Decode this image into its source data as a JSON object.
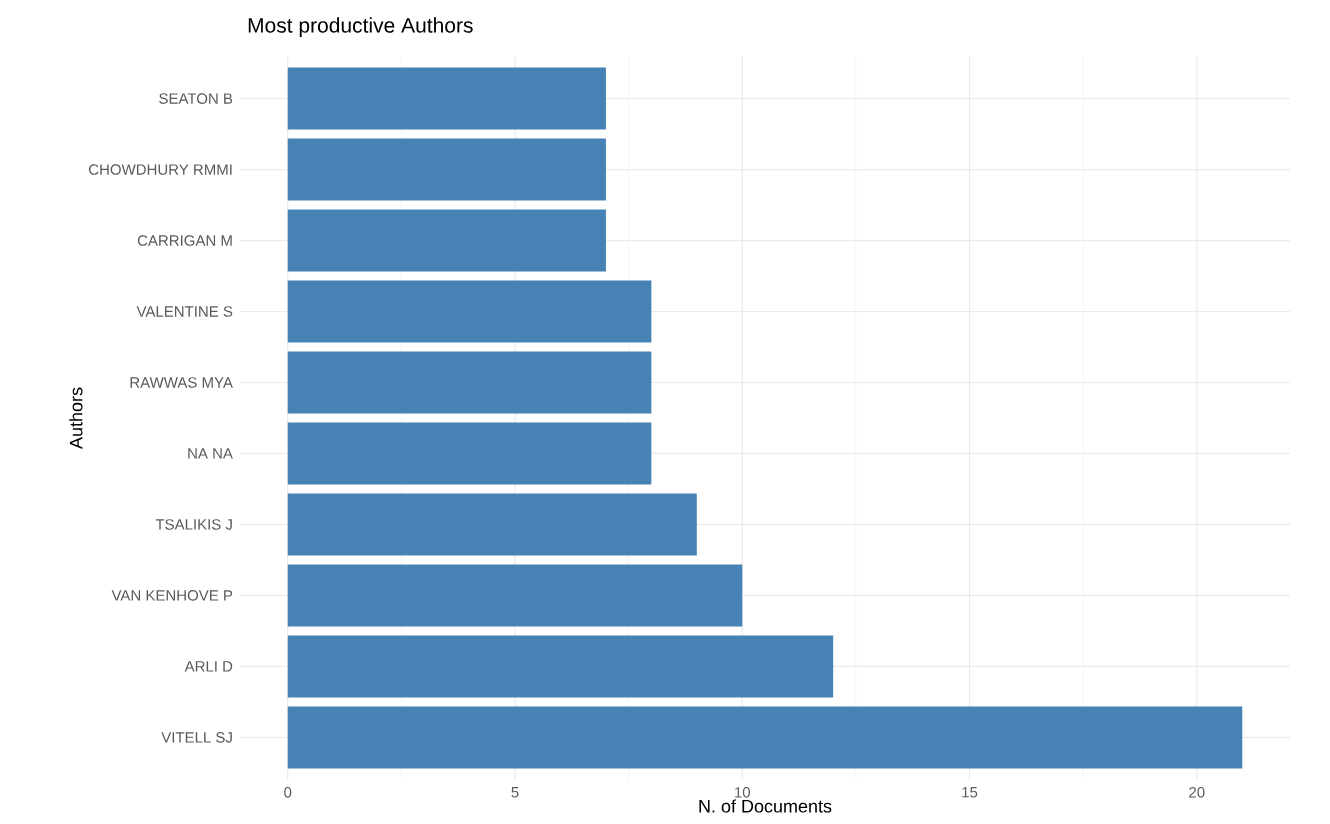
{
  "chart_data": {
    "type": "bar",
    "orientation": "horizontal",
    "title": "Most productive Authors",
    "xlabel": "N. of Documents",
    "ylabel": "Authors",
    "categories": [
      "SEATON B",
      "CHOWDHURY RMMI",
      "CARRIGAN M",
      "VALENTINE S",
      "RAWWAS MYA",
      "NA NA",
      "TSALIKIS J",
      "VAN KENHOVE P",
      "ARLI D",
      "VITELL SJ"
    ],
    "values": [
      7,
      7,
      7,
      8,
      8,
      8,
      9,
      10,
      12,
      21
    ],
    "color": "#4682b4",
    "xlim": [
      -1.05,
      22.05
    ],
    "xticks": [
      0,
      5,
      10,
      15,
      20
    ],
    "grid": true
  }
}
